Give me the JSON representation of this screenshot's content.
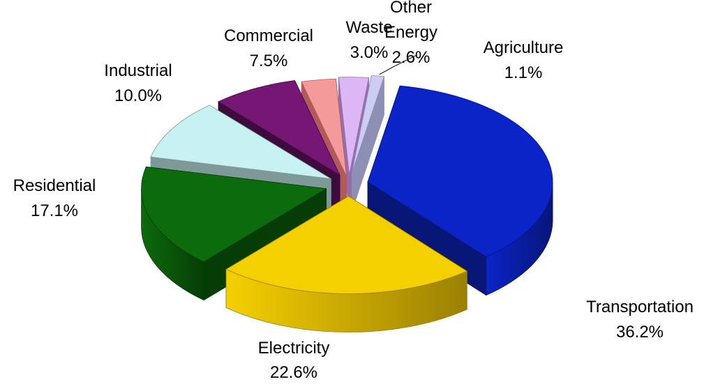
{
  "chart_data": {
    "type": "pie",
    "title": "",
    "slices": [
      {
        "label": "Transportation",
        "value": 36.2,
        "value_label": "36.2%",
        "color": "#0a24c8",
        "side_color": "#071677"
      },
      {
        "label": "Electricity",
        "value": 22.6,
        "value_label": "22.6%",
        "color": "#f5d000",
        "side_color": "#9b8004"
      },
      {
        "label": "Residential",
        "value": 17.1,
        "value_label": "17.1%",
        "color": "#0c6b0c",
        "side_color": "#063d06"
      },
      {
        "label": "Industrial",
        "value": 10.0,
        "value_label": "10.0%",
        "color": "#c8f2f2",
        "side_color": "#7f9999"
      },
      {
        "label": "Commercial",
        "value": 7.5,
        "value_label": "7.5%",
        "color": "#771775",
        "side_color": "#3f0a3e"
      },
      {
        "label": "Waste",
        "value": 3.0,
        "value_label": "3.0%",
        "color": "#f59a9a",
        "side_color": "#b05a5a"
      },
      {
        "label": "Other Energy",
        "value": 2.6,
        "value_label": "2.6%",
        "color": "#ddb6f5",
        "side_color": "#9370ad"
      },
      {
        "label": "Agriculture",
        "value": 1.1,
        "value_label": "1.1%",
        "color": "#cccdf0",
        "side_color": "#8e8fb5"
      }
    ],
    "legend": "none",
    "style": "3d-exploded"
  }
}
